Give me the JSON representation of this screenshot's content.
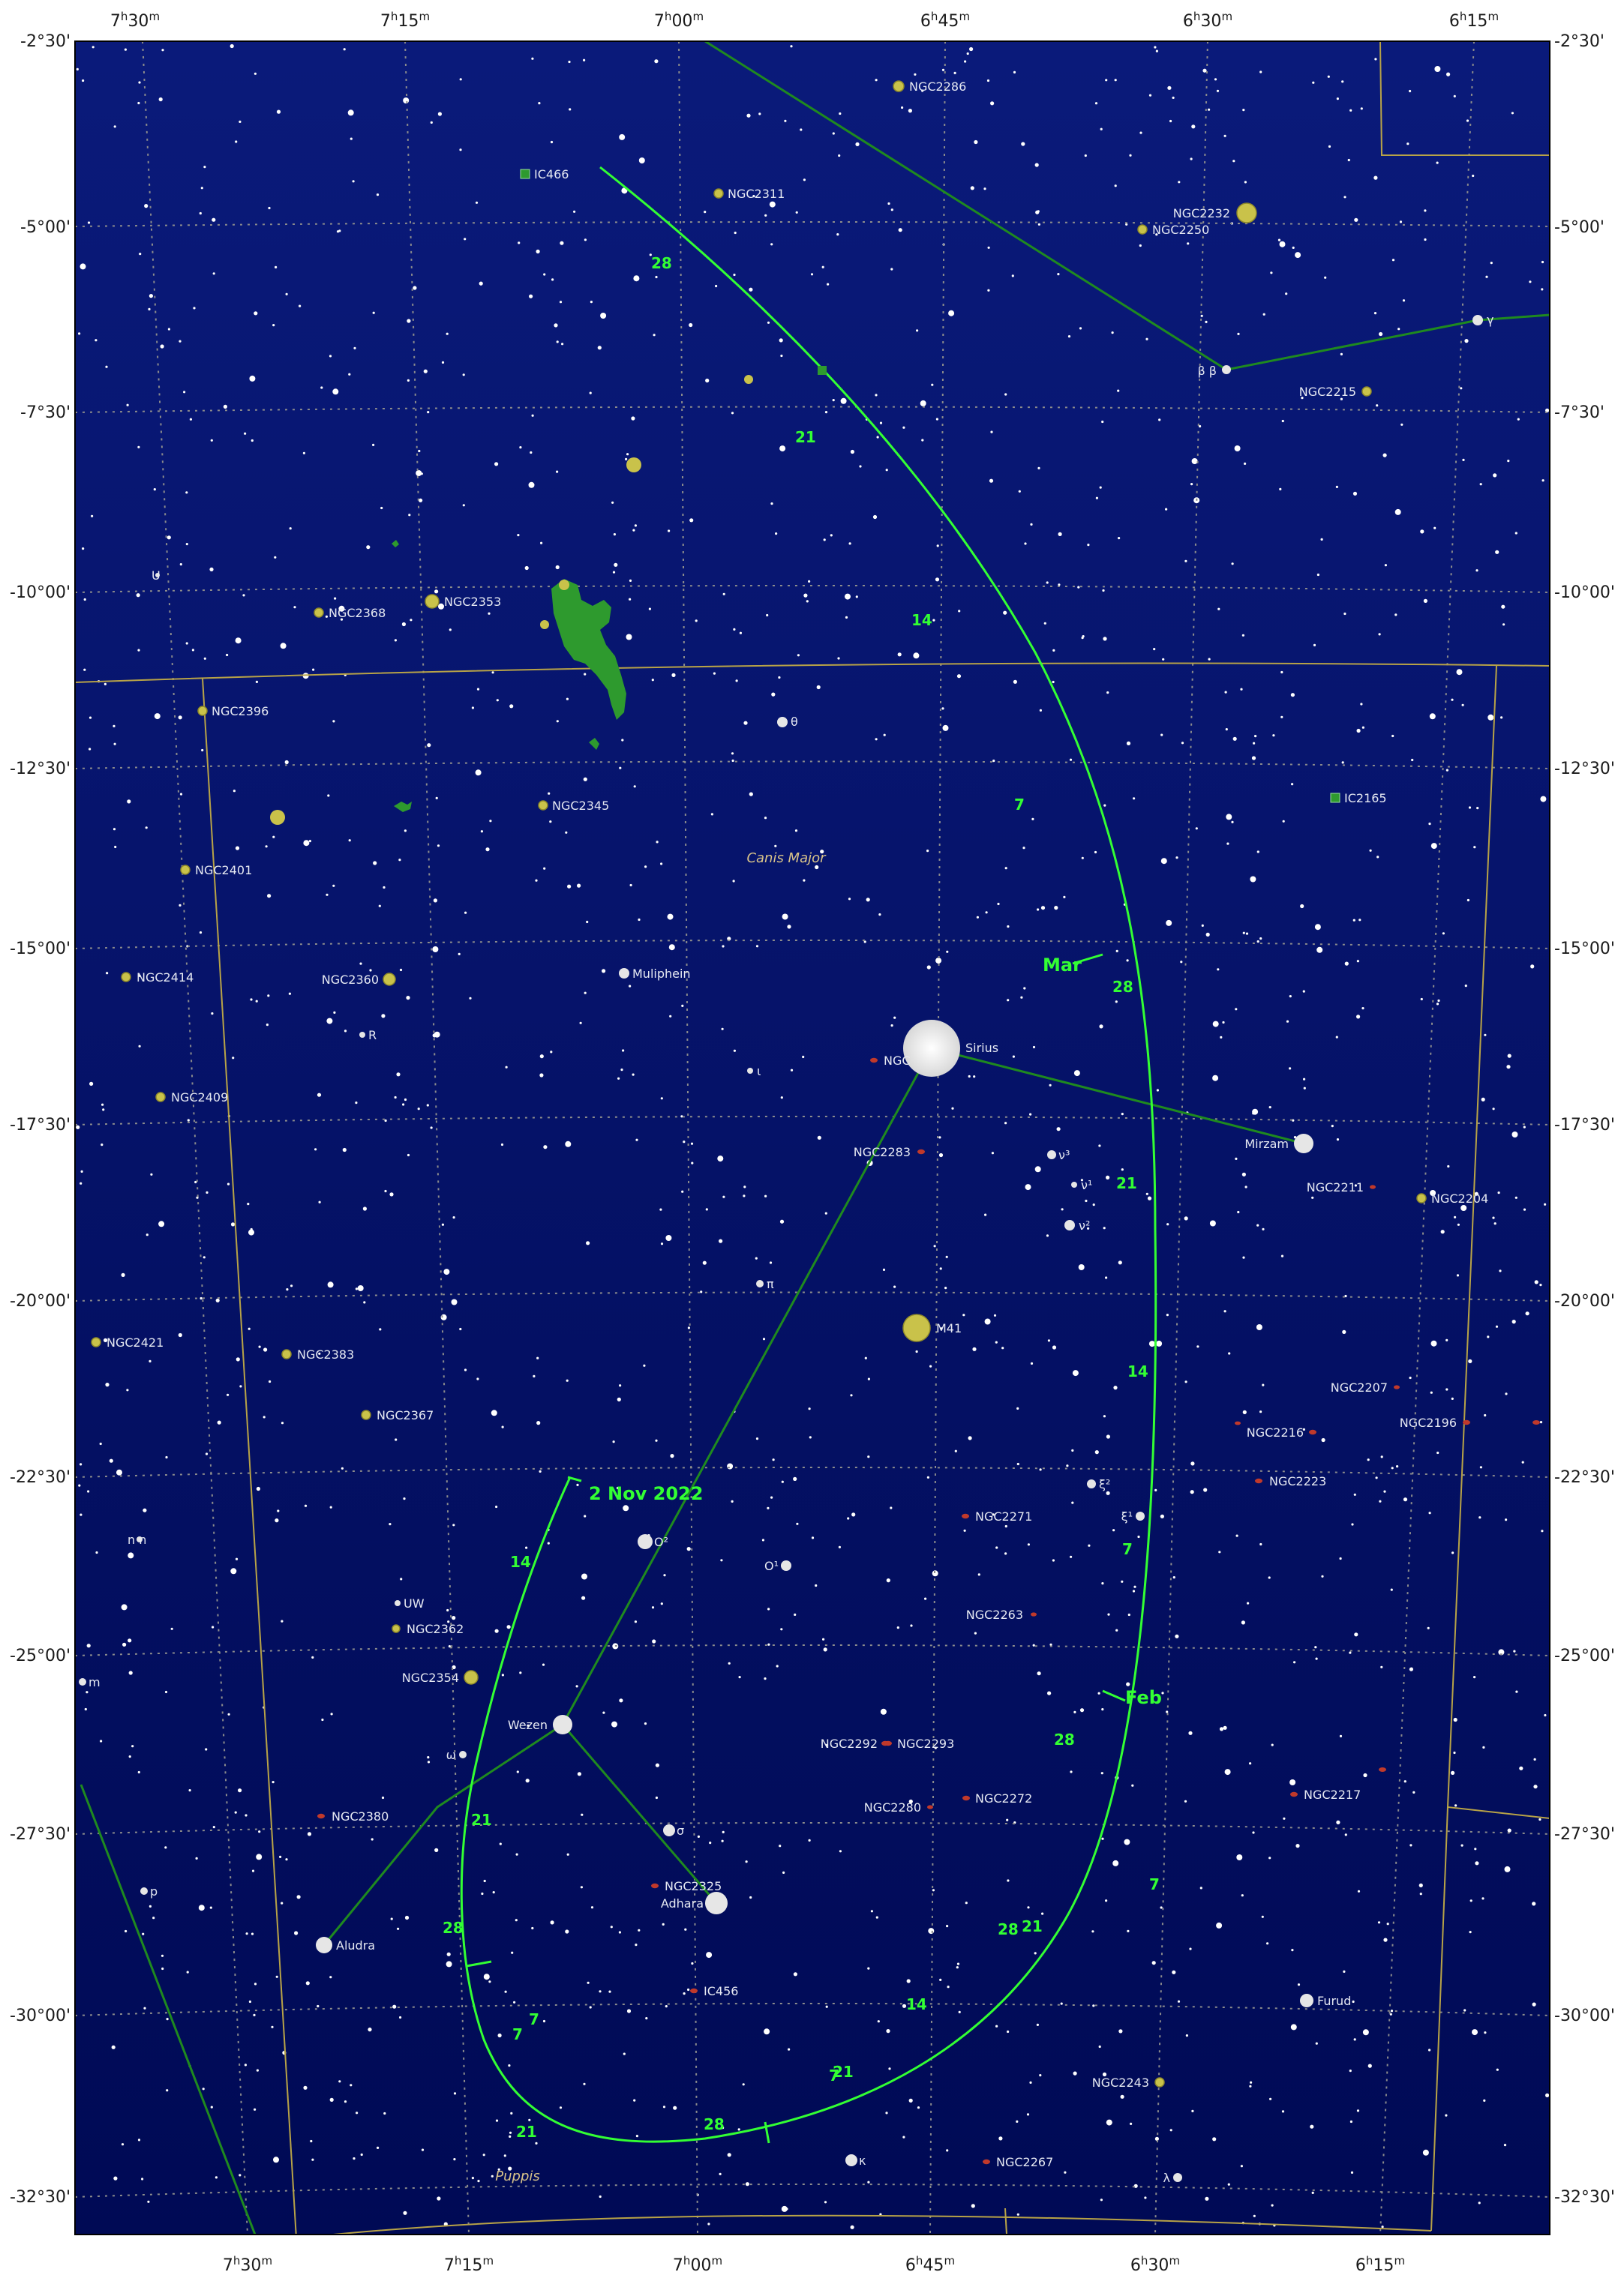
{
  "map": {
    "background_top": "#0a1a7a",
    "background_bottom": "#000a55",
    "grid_color": "#8c8c8c",
    "boundary_color": "#b8a347",
    "constellation_line_color": "#1f8a1f",
    "path_color": "#33ff33",
    "cluster_color": "#c9c24a",
    "galaxy_color": "#c0392b",
    "nebula_color": "#2e9a2e"
  },
  "ra_labels": [
    {
      "h": "7",
      "m": "30"
    },
    {
      "h": "7",
      "m": "15"
    },
    {
      "h": "7",
      "m": "00"
    },
    {
      "h": "6",
      "m": "45"
    },
    {
      "h": "6",
      "m": "30"
    },
    {
      "h": "6",
      "m": "15"
    }
  ],
  "dec_labels": [
    "-2°30'",
    "-5°00'",
    "-7°30'",
    "-10°00'",
    "-12°30'",
    "-15°00'",
    "-17°30'",
    "-20°00'",
    "-22°30'",
    "-25°00'",
    "-27°30'",
    "-30°00'",
    "-32°30'"
  ],
  "constellations": [
    "Canis Major",
    "Puppis"
  ],
  "stars": [
    {
      "name": "Sirius",
      "label": "Sirius"
    },
    {
      "name": "Mirzam",
      "label": "Mirzam"
    },
    {
      "name": "Muliphein",
      "label": "Muliphein"
    },
    {
      "name": "Wezen",
      "label": "Wezen"
    },
    {
      "name": "Adhara",
      "label": "Adhara"
    },
    {
      "name": "Aludra",
      "label": "Aludra"
    },
    {
      "name": "Furud",
      "label": "Furud"
    },
    {
      "name": "gamma",
      "label": "γ"
    },
    {
      "name": "beta",
      "label": "β β"
    },
    {
      "name": "theta",
      "label": "θ"
    },
    {
      "name": "iota",
      "label": "ι"
    },
    {
      "name": "nu3",
      "label": "ν³"
    },
    {
      "name": "nu1",
      "label": "ν¹"
    },
    {
      "name": "nu2",
      "label": "ν²"
    },
    {
      "name": "pi",
      "label": "π"
    },
    {
      "name": "xi2",
      "label": "ξ²"
    },
    {
      "name": "xi1",
      "label": "ξ¹"
    },
    {
      "name": "omicron2",
      "label": "O²"
    },
    {
      "name": "omicron1",
      "label": "O¹"
    },
    {
      "name": "omega",
      "label": "ω"
    },
    {
      "name": "sigma",
      "label": "σ"
    },
    {
      "name": "kappa",
      "label": "κ"
    },
    {
      "name": "lambda",
      "label": "λ"
    },
    {
      "name": "UW",
      "label": "UW"
    },
    {
      "name": "R",
      "label": "R"
    },
    {
      "name": "U",
      "label": "U"
    },
    {
      "name": "n",
      "label": "n n"
    },
    {
      "name": "m",
      "label": "m"
    },
    {
      "name": "p",
      "label": "p"
    }
  ],
  "deep_sky": [
    {
      "name": "NGC2286",
      "type": "cluster"
    },
    {
      "name": "IC466",
      "type": "nebula"
    },
    {
      "name": "NGC2311",
      "type": "cluster"
    },
    {
      "name": "NGC2232",
      "type": "cluster"
    },
    {
      "name": "NGC2250",
      "type": "cluster"
    },
    {
      "name": "NGC2215",
      "type": "cluster"
    },
    {
      "name": "NGC2368",
      "type": "cluster"
    },
    {
      "name": "NGC2353",
      "type": "cluster"
    },
    {
      "name": "NGC2396",
      "type": "cluster"
    },
    {
      "name": "NGC2345",
      "type": "cluster"
    },
    {
      "name": "IC2165",
      "type": "nebula"
    },
    {
      "name": "NGC2401",
      "type": "cluster"
    },
    {
      "name": "NGC2414",
      "type": "cluster"
    },
    {
      "name": "NGC2360",
      "type": "cluster"
    },
    {
      "name": "NGC",
      "type": "galaxy"
    },
    {
      "name": "NGC2409",
      "type": "cluster"
    },
    {
      "name": "NGC2283",
      "type": "galaxy"
    },
    {
      "name": "NGC2211",
      "type": "galaxy"
    },
    {
      "name": "NGC2204",
      "type": "cluster"
    },
    {
      "name": "M41",
      "type": "cluster"
    },
    {
      "name": "NGC2421",
      "type": "cluster"
    },
    {
      "name": "NGC2383",
      "type": "cluster"
    },
    {
      "name": "NGC2367",
      "type": "cluster"
    },
    {
      "name": "NGC2207",
      "type": "galaxy"
    },
    {
      "name": "NGC2216",
      "type": "galaxy"
    },
    {
      "name": "NGC2196",
      "type": "galaxy"
    },
    {
      "name": "NGC2223",
      "type": "galaxy"
    },
    {
      "name": "NGC2271",
      "type": "galaxy"
    },
    {
      "name": "NGC2362",
      "type": "cluster"
    },
    {
      "name": "NGC2263",
      "type": "galaxy"
    },
    {
      "name": "NGC2354",
      "type": "cluster"
    },
    {
      "name": "NGC2292",
      "type": "galaxy"
    },
    {
      "name": "NGC2293",
      "type": "galaxy"
    },
    {
      "name": "NGC2280",
      "type": "galaxy"
    },
    {
      "name": "NGC2272",
      "type": "galaxy"
    },
    {
      "name": "NGC2217",
      "type": "galaxy"
    },
    {
      "name": "NGC2380",
      "type": "galaxy"
    },
    {
      "name": "NGC2325",
      "type": "galaxy"
    },
    {
      "name": "IC456",
      "type": "galaxy"
    },
    {
      "name": "NGC2243",
      "type": "cluster"
    },
    {
      "name": "NGC2267",
      "type": "galaxy"
    }
  ],
  "path": {
    "start_label": "2 Nov 2022",
    "month_labels": [
      "Mar",
      "Feb"
    ],
    "day_labels": [
      "28",
      "21",
      "14",
      "7",
      "28",
      "21",
      "14",
      "7",
      "28",
      "21",
      "14",
      "7",
      "28",
      "21",
      "7",
      "28",
      "21",
      "14",
      "7",
      "28",
      "21",
      "7"
    ]
  }
}
